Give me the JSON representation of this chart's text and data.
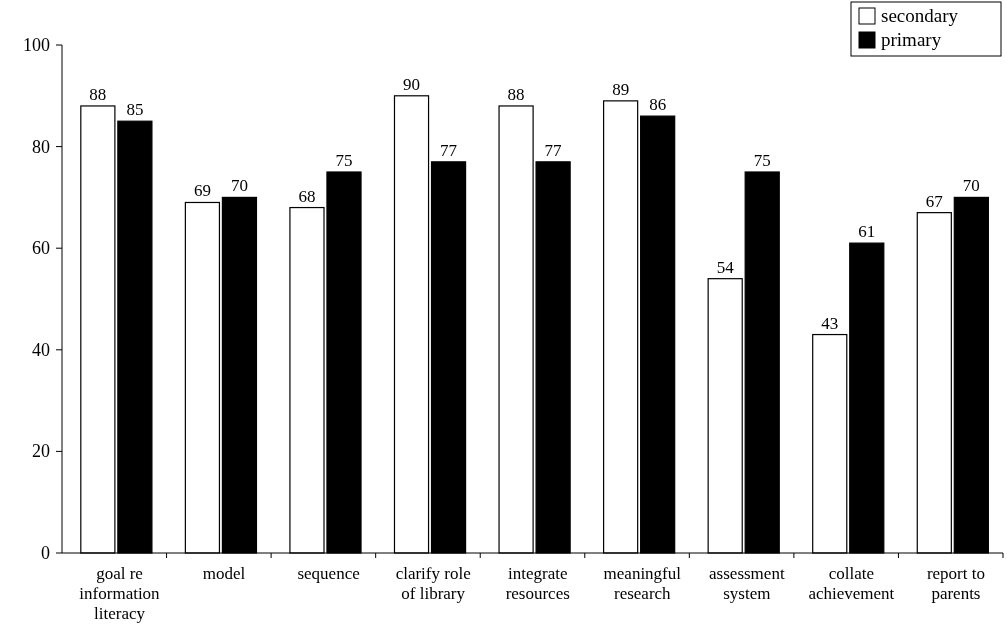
{
  "chart_data": {
    "type": "bar",
    "categories": [
      "goal re information literacy",
      "model",
      "sequence",
      "clarify role of library",
      "integrate resources",
      "meaningful research",
      "assessment system",
      "collate achievement",
      "report to parents"
    ],
    "series": [
      {
        "name": "secondary",
        "color": "#ffffff",
        "values": [
          88,
          69,
          68,
          90,
          88,
          89,
          54,
          43,
          67
        ]
      },
      {
        "name": "primary",
        "color": "#000000",
        "values": [
          85,
          70,
          75,
          77,
          77,
          86,
          75,
          61,
          70
        ]
      }
    ],
    "ylim": [
      0,
      100
    ],
    "yticks": [
      0,
      20,
      40,
      60,
      80,
      100
    ],
    "data_labels": true,
    "legend": "top right",
    "grid": false
  }
}
